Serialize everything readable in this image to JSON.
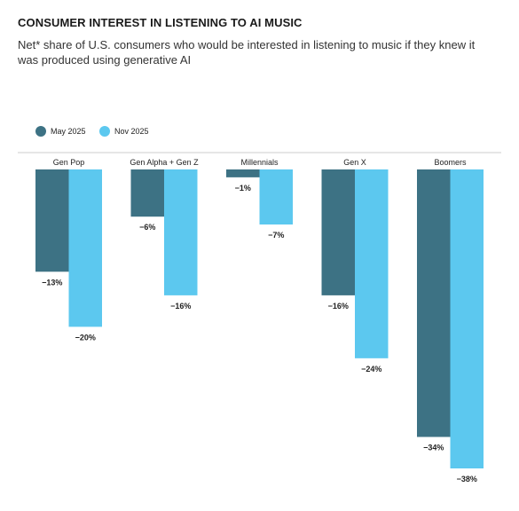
{
  "chart_data": {
    "type": "bar",
    "title": "CONSUMER INTEREST IN LISTENING TO AI MUSIC",
    "subtitle": "Net* share of U.S. consumers who would be interested in listening to music if they knew it was produced using generative AI",
    "categories": [
      "Gen Pop",
      "Gen Alpha + Gen Z",
      "Millennials",
      "Gen X",
      "Boomers"
    ],
    "series": [
      {
        "name": "May 2025",
        "color": "#3d7284",
        "values": [
          -13,
          -6,
          -1,
          -16,
          -34
        ],
        "value_labels": [
          "−13%",
          "−6%",
          "−1%",
          "−16%",
          "−34%"
        ]
      },
      {
        "name": "Nov 2025",
        "color": "#5cc8ef",
        "values": [
          -20,
          -16,
          -7,
          -24,
          -38
        ],
        "value_labels": [
          "−20%",
          "−16%",
          "−7%",
          "−24%",
          "−38%"
        ]
      }
    ],
    "legend": "top-left"
  }
}
